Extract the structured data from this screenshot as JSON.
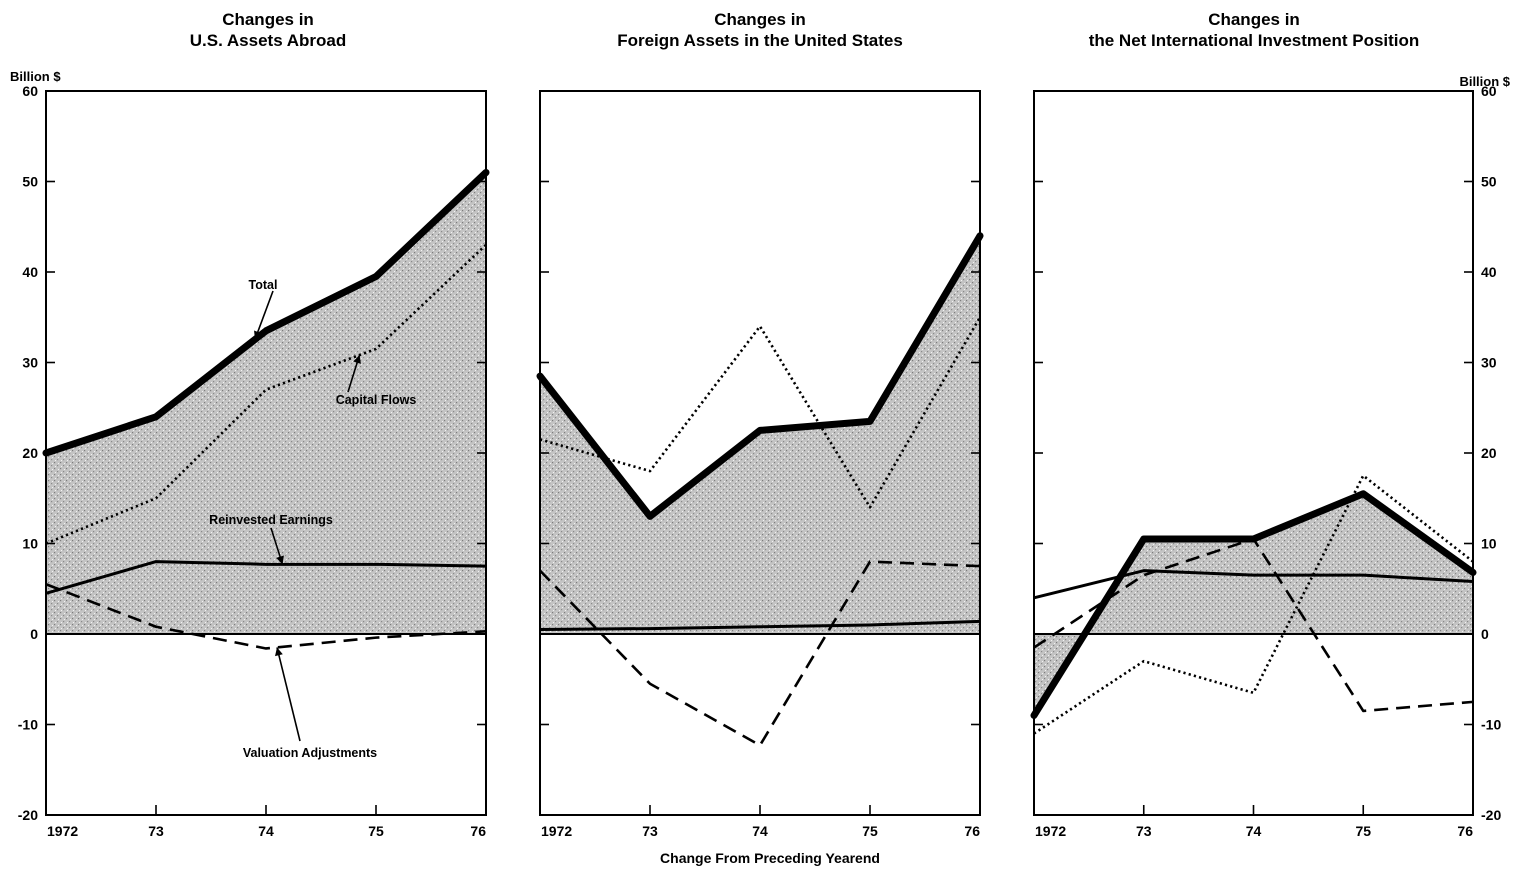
{
  "chart_data": [
    {
      "type": "line",
      "title": [
        "Changes in",
        "U.S. Assets Abroad"
      ],
      "ylabel": "Billion $",
      "ylim": [
        -20,
        60
      ],
      "yticks": [
        -20,
        -10,
        0,
        10,
        20,
        30,
        40,
        50,
        60
      ],
      "x": [
        1972,
        1973,
        1974,
        1975,
        1976
      ],
      "xtick_labels": [
        "1972",
        "73",
        "74",
        "75",
        "76"
      ],
      "series": [
        {
          "name": "Total",
          "style": "thick",
          "shaded": true,
          "values": [
            20,
            24,
            33.5,
            39.5,
            51
          ]
        },
        {
          "name": "Capital Flows",
          "style": "dotted",
          "values": [
            10,
            15,
            27,
            31.5,
            43
          ]
        },
        {
          "name": "Reinvested Earnings",
          "style": "solid",
          "values": [
            4.5,
            8,
            7.7,
            7.7,
            7.5
          ]
        },
        {
          "name": "Valuation Adjustments",
          "style": "dashed",
          "values": [
            5.5,
            0.8,
            -1.6,
            -0.4,
            0.3
          ]
        }
      ],
      "annotations": [
        {
          "text": "Total",
          "series": "Total",
          "x": 1973.9
        },
        {
          "text": "Capital Flows",
          "series": "Capital Flows",
          "x": 1974.85
        },
        {
          "text": "Reinvested Earnings",
          "series": "Reinvested Earnings",
          "x": 1974.15
        },
        {
          "text": "Valuation Adjustments",
          "series": "Valuation Adjustments",
          "x": 1974.1
        }
      ]
    },
    {
      "type": "line",
      "title": [
        "Changes in",
        "Foreign Assets in the United States"
      ],
      "ylim": [
        -20,
        60
      ],
      "x": [
        1972,
        1973,
        1974,
        1975,
        1976
      ],
      "xtick_labels": [
        "1972",
        "73",
        "74",
        "75",
        "76"
      ],
      "series": [
        {
          "name": "Total",
          "style": "thick",
          "shaded": true,
          "values": [
            28.5,
            13,
            22.5,
            23.5,
            44
          ]
        },
        {
          "name": "Capital Flows",
          "style": "dotted",
          "values": [
            21.5,
            18,
            34,
            14,
            35
          ]
        },
        {
          "name": "Reinvested Earnings",
          "style": "solid",
          "values": [
            0.5,
            0.6,
            0.8,
            1,
            1.4
          ]
        },
        {
          "name": "Valuation Adjustments",
          "style": "dashed",
          "values": [
            7,
            -5.5,
            -12.3,
            8,
            7.5
          ]
        }
      ]
    },
    {
      "type": "line",
      "title": [
        "Changes in",
        "the Net International Investment Position"
      ],
      "ylabel": "Billion $",
      "ylim": [
        -20,
        60
      ],
      "yticks": [
        -20,
        -10,
        0,
        10,
        20,
        30,
        40,
        50,
        60
      ],
      "x": [
        1972,
        1973,
        1974,
        1975,
        1976
      ],
      "xtick_labels": [
        "1972",
        "73",
        "74",
        "75",
        "76"
      ],
      "series": [
        {
          "name": "Total",
          "style": "thick",
          "shaded": true,
          "values": [
            -9,
            10.5,
            10.5,
            15.5,
            6.8
          ]
        },
        {
          "name": "Capital Flows",
          "style": "dotted",
          "values": [
            -11,
            -3,
            -6.5,
            17.5,
            8
          ]
        },
        {
          "name": "Reinvested Earnings",
          "style": "solid",
          "values": [
            4,
            7,
            6.5,
            6.5,
            5.8
          ]
        },
        {
          "name": "Valuation Adjustments",
          "style": "dashed",
          "values": [
            -1.5,
            6.5,
            10.5,
            -8.5,
            -7.5
          ]
        }
      ]
    }
  ],
  "footer": "Change From Preceding Yearend"
}
